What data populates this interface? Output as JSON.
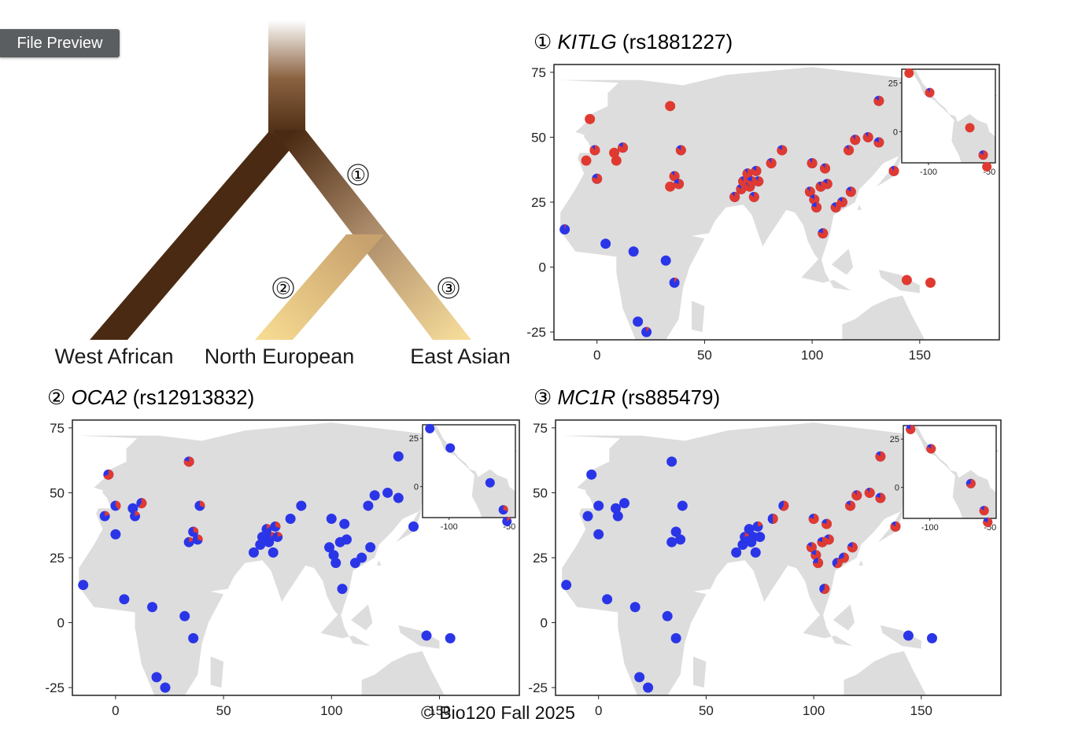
{
  "app": {
    "badge": "File Preview"
  },
  "footer": "© Bio120 Fall 2025",
  "colors": {
    "derived": "#e03a30",
    "ancestral": "#2b35e8",
    "land": "#dddddd",
    "frame": "#222222"
  },
  "tree": {
    "labels": [
      "West African",
      "North European",
      "East Asian"
    ],
    "markers": [
      "①",
      "②",
      "③"
    ]
  },
  "chart_data": [
    {
      "type": "scatter",
      "marker": "①",
      "gene": "KITLG",
      "snp": "(rs1881227)",
      "xlim": [
        -20,
        187
      ],
      "ylim": [
        -28,
        78
      ],
      "xticks": [
        0,
        50,
        100,
        150
      ],
      "yticks": [
        75,
        50,
        25,
        0,
        -25
      ],
      "points": [
        [
          -3.3,
          57.0,
          1
        ],
        [
          -1,
          45,
          0.9
        ],
        [
          -5,
          41,
          1
        ],
        [
          0,
          34,
          0.8
        ],
        [
          8,
          44,
          1
        ],
        [
          9,
          41,
          1
        ],
        [
          12,
          46,
          0.85
        ],
        [
          34,
          62,
          1
        ],
        [
          39,
          45,
          0.85
        ],
        [
          36,
          35,
          0.9
        ],
        [
          34,
          31,
          1
        ],
        [
          38,
          32,
          0.8
        ],
        [
          64,
          27,
          0.9
        ],
        [
          67,
          30,
          0.85
        ],
        [
          68,
          33,
          0.9
        ],
        [
          70,
          36,
          0.9
        ],
        [
          71,
          31,
          0.85
        ],
        [
          72,
          33,
          0.8
        ],
        [
          73,
          27,
          0.85
        ],
        [
          74,
          37,
          0.85
        ],
        [
          75,
          33,
          0.9
        ],
        [
          81,
          40,
          0.9
        ],
        [
          86,
          45,
          0.85
        ],
        [
          100,
          40,
          0.9
        ],
        [
          106,
          38,
          0.9
        ],
        [
          104,
          31,
          0.9
        ],
        [
          107,
          32,
          0.85
        ],
        [
          99,
          29,
          0.9
        ],
        [
          101,
          26,
          0.85
        ],
        [
          102,
          23,
          0.8
        ],
        [
          111,
          23,
          0.85
        ],
        [
          114,
          25,
          0.85
        ],
        [
          118,
          29,
          0.85
        ],
        [
          105,
          13,
          0.8
        ],
        [
          117,
          45,
          0.9
        ],
        [
          120,
          49,
          0.9
        ],
        [
          126,
          50,
          0.9
        ],
        [
          131,
          48,
          0.8
        ],
        [
          138,
          37,
          0.9
        ],
        [
          131,
          64,
          0.85
        ],
        [
          144,
          -5,
          1
        ],
        [
          155,
          -6,
          1
        ],
        [
          -15,
          14.5,
          0.05
        ],
        [
          4,
          9,
          0
        ],
        [
          17,
          6,
          0
        ],
        [
          32,
          2.5,
          0
        ],
        [
          36,
          -6,
          0.1
        ],
        [
          19,
          -21,
          0
        ],
        [
          23,
          -25,
          0.1
        ]
      ],
      "inset": {
        "xlim": [
          -122,
          -45
        ],
        "ylim": [
          -16,
          32
        ],
        "xticks": [
          -100,
          -50
        ],
        "yticks": [
          25,
          0
        ],
        "points": [
          [
            -116,
            30,
            1
          ],
          [
            -99,
            20,
            0.9
          ],
          [
            -66,
            2,
            1
          ],
          [
            -55,
            -12,
            0.85
          ],
          [
            -52,
            -18,
            1
          ]
        ]
      }
    },
    {
      "type": "scatter",
      "marker": "②",
      "gene": "OCA2",
      "snp": "(rs12913832)",
      "xlim": [
        -20,
        187
      ],
      "ylim": [
        -28,
        78
      ],
      "xticks": [
        0,
        50,
        100,
        150
      ],
      "yticks": [
        75,
        50,
        25,
        0,
        -25
      ],
      "points": [
        [
          -3.3,
          57.0,
          0.7
        ],
        [
          0,
          45,
          0.4
        ],
        [
          -5,
          41,
          0.2
        ],
        [
          0,
          34,
          0
        ],
        [
          8,
          44,
          0
        ],
        [
          9,
          41,
          0.2
        ],
        [
          12,
          46,
          0.6
        ],
        [
          34,
          62,
          0.8
        ],
        [
          39,
          45,
          0.3
        ],
        [
          36,
          35,
          0.3
        ],
        [
          34,
          31,
          0.2
        ],
        [
          38,
          32,
          0.3
        ],
        [
          64,
          27,
          0
        ],
        [
          67,
          30,
          0
        ],
        [
          68,
          33,
          0
        ],
        [
          70,
          36,
          0.15
        ],
        [
          71,
          31,
          0
        ],
        [
          72,
          33,
          0.15
        ],
        [
          73,
          27,
          0
        ],
        [
          74,
          37,
          0.3
        ],
        [
          75,
          33,
          0.2
        ],
        [
          81,
          40,
          0
        ],
        [
          86,
          45,
          0
        ],
        [
          100,
          40,
          0
        ],
        [
          106,
          38,
          0
        ],
        [
          104,
          31,
          0
        ],
        [
          107,
          32,
          0
        ],
        [
          99,
          29,
          0
        ],
        [
          101,
          26,
          0
        ],
        [
          102,
          23,
          0
        ],
        [
          111,
          23,
          0
        ],
        [
          114,
          25,
          0
        ],
        [
          118,
          29,
          0
        ],
        [
          105,
          13,
          0
        ],
        [
          117,
          45,
          0
        ],
        [
          120,
          49,
          0
        ],
        [
          126,
          50,
          0
        ],
        [
          131,
          48,
          0
        ],
        [
          138,
          37,
          0
        ],
        [
          131,
          64,
          0
        ],
        [
          144,
          -5,
          0
        ],
        [
          155,
          -6,
          0
        ],
        [
          -15,
          14.5,
          0
        ],
        [
          4,
          9,
          0
        ],
        [
          17,
          6,
          0
        ],
        [
          32,
          2.5,
          0
        ],
        [
          36,
          -6,
          0
        ],
        [
          19,
          -21,
          0
        ],
        [
          23,
          -25,
          0
        ]
      ],
      "inset": {
        "xlim": [
          -122,
          -45
        ],
        "ylim": [
          -16,
          32
        ],
        "xticks": [
          -100,
          -50
        ],
        "yticks": [
          25,
          0
        ],
        "points": [
          [
            -116,
            30,
            0
          ],
          [
            -99,
            20,
            0
          ],
          [
            -66,
            2,
            0
          ],
          [
            -55,
            -12,
            0.3
          ],
          [
            -52,
            -18,
            0.15
          ]
        ]
      }
    },
    {
      "type": "scatter",
      "marker": "③",
      "gene": "MC1R",
      "snp": "(rs885479)",
      "xlim": [
        -20,
        187
      ],
      "ylim": [
        -28,
        78
      ],
      "xticks": [
        0,
        50,
        100,
        150
      ],
      "yticks": [
        75,
        50,
        25,
        0,
        -25
      ],
      "points": [
        [
          -3.3,
          57.0,
          0
        ],
        [
          0,
          45,
          0
        ],
        [
          -5,
          41,
          0
        ],
        [
          0,
          34,
          0
        ],
        [
          8,
          44,
          0
        ],
        [
          9,
          41,
          0
        ],
        [
          12,
          46,
          0
        ],
        [
          34,
          62,
          0
        ],
        [
          39,
          45,
          0
        ],
        [
          36,
          35,
          0
        ],
        [
          34,
          31,
          0
        ],
        [
          38,
          32,
          0
        ],
        [
          64,
          27,
          0
        ],
        [
          67,
          30,
          0
        ],
        [
          68,
          33,
          0.2
        ],
        [
          70,
          36,
          0
        ],
        [
          71,
          31,
          0
        ],
        [
          72,
          33,
          0
        ],
        [
          73,
          27,
          0
        ],
        [
          74,
          37,
          0.2
        ],
        [
          75,
          33,
          0
        ],
        [
          81,
          40,
          0.5
        ],
        [
          86,
          45,
          0.6
        ],
        [
          100,
          40,
          0.8
        ],
        [
          106,
          38,
          0.8
        ],
        [
          104,
          31,
          0.8
        ],
        [
          107,
          32,
          0.85
        ],
        [
          99,
          29,
          0.85
        ],
        [
          101,
          26,
          0.8
        ],
        [
          102,
          23,
          0.75
        ],
        [
          111,
          23,
          0.6
        ],
        [
          114,
          25,
          0.7
        ],
        [
          118,
          29,
          0.8
        ],
        [
          105,
          13,
          0.6
        ],
        [
          117,
          45,
          0.85
        ],
        [
          120,
          49,
          0.9
        ],
        [
          126,
          50,
          0.9
        ],
        [
          131,
          48,
          0.8
        ],
        [
          138,
          37,
          0.85
        ],
        [
          131,
          64,
          0.85
        ],
        [
          144,
          -5,
          0
        ],
        [
          155,
          -6,
          0
        ],
        [
          -15,
          14.5,
          0
        ],
        [
          4,
          9,
          0
        ],
        [
          17,
          6,
          0
        ],
        [
          32,
          2.5,
          0
        ],
        [
          36,
          -6,
          0
        ],
        [
          19,
          -21,
          0
        ],
        [
          23,
          -25,
          0
        ]
      ],
      "inset": {
        "xlim": [
          -122,
          -45
        ],
        "ylim": [
          -16,
          32
        ],
        "xticks": [
          -100,
          -50
        ],
        "yticks": [
          25,
          0
        ],
        "points": [
          [
            -116,
            30,
            0.8
          ],
          [
            -99,
            20,
            0.85
          ],
          [
            -66,
            2,
            0.7
          ],
          [
            -55,
            -12,
            0.85
          ],
          [
            -52,
            -18,
            0.8
          ]
        ]
      }
    }
  ]
}
